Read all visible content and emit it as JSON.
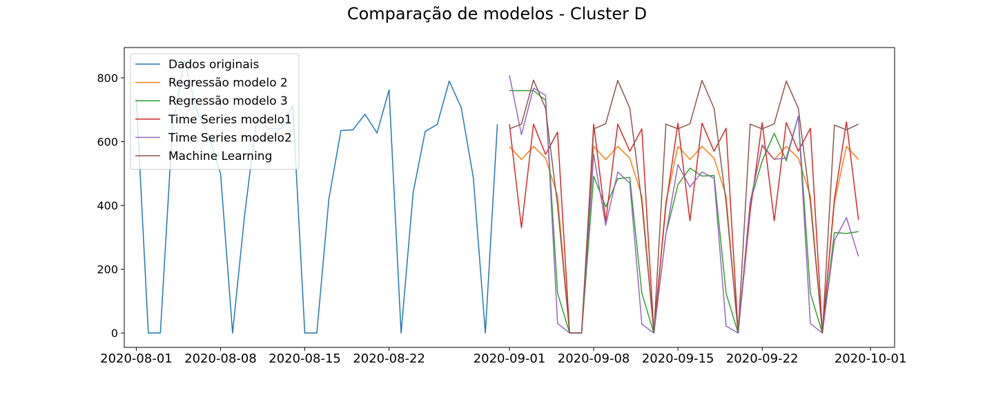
{
  "chart_data": {
    "type": "line",
    "title": "Comparação de modelos - Cluster D",
    "xlabel": "",
    "ylabel": "",
    "xlim": [
      "2020-07-31",
      "2020-10-03"
    ],
    "ylim": [
      -45,
      895
    ],
    "x_ticks": [
      "2020-08-01",
      "2020-08-08",
      "2020-08-15",
      "2020-08-22",
      "2020-09-01",
      "2020-09-08",
      "2020-09-15",
      "2020-09-22",
      "2020-10-01"
    ],
    "y_ticks": [
      0,
      200,
      400,
      600,
      800
    ],
    "grid": false,
    "legend": "upper-left",
    "series": [
      {
        "name": "Dados originais",
        "color": "#1f77b4",
        "start_date": "2020-08-01",
        "values": [
          735,
          0,
          0,
          642,
          855,
          700,
          620,
          500,
          0,
          370,
          672,
          640,
          640,
          713,
          0,
          0,
          420,
          635,
          637,
          686,
          627,
          762,
          0,
          440,
          632,
          654,
          790,
          706,
          487,
          0,
          655
        ]
      },
      {
        "name": "Regressão modelo 2",
        "color": "#ff7f0e",
        "start_date": "2020-09-01",
        "values": [
          585,
          544,
          585,
          548,
          430,
          0,
          0,
          585,
          544,
          585,
          548,
          430,
          0,
          410,
          585,
          544,
          585,
          548,
          430,
          0,
          410,
          585,
          544,
          585,
          548,
          430,
          0,
          410,
          585,
          544
        ]
      },
      {
        "name": "Regressão modelo 3",
        "color": "#2ca02c",
        "start_date": "2020-09-01",
        "values": [
          760,
          760,
          760,
          730,
          125,
          0,
          0,
          492,
          395,
          484,
          488,
          125,
          0,
          310,
          465,
          517,
          492,
          494,
          125,
          0,
          410,
          540,
          626,
          540,
          680,
          125,
          0,
          315,
          312,
          318
        ]
      },
      {
        "name": "Time Series modelo1",
        "color": "#d62728",
        "start_date": "2020-09-01",
        "values": [
          655,
          330,
          655,
          560,
          630,
          0,
          0,
          655,
          350,
          655,
          570,
          640,
          0,
          400,
          658,
          352,
          658,
          570,
          642,
          0,
          380,
          660,
          352,
          660,
          570,
          642,
          0,
          420,
          662,
          355
        ]
      },
      {
        "name": "Time Series modelo2",
        "color": "#9467bd",
        "start_date": "2020-09-01",
        "values": [
          808,
          622,
          768,
          745,
          30,
          0,
          0,
          560,
          338,
          505,
          470,
          28,
          0,
          310,
          528,
          458,
          505,
          485,
          22,
          0,
          410,
          590,
          545,
          548,
          680,
          30,
          0,
          290,
          362,
          240
        ]
      },
      {
        "name": "Machine Learning",
        "color": "#8c564b",
        "start_date": "2020-09-01",
        "values": [
          640,
          655,
          793,
          705,
          400,
          0,
          0,
          640,
          656,
          792,
          705,
          410,
          0,
          655,
          640,
          656,
          792,
          705,
          410,
          0,
          655,
          640,
          656,
          790,
          705,
          410,
          0,
          652,
          637,
          655
        ]
      }
    ]
  }
}
